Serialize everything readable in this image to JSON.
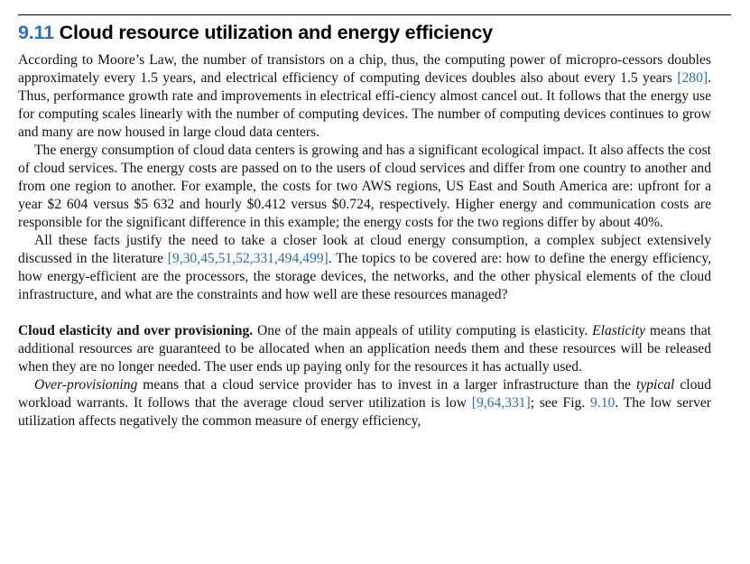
{
  "section": {
    "number": "9.11",
    "title": "Cloud resource utilization and energy efficiency"
  },
  "para1": {
    "text1": "According to Moore’s Law, the number of transistors on a chip, thus, the computing power of micropro-cessors doubles approximately every 1.5 years, and electrical efficiency of computing devices doubles also about every 1.5 years ",
    "cite1": "[280]",
    "text2": ". Thus, performance growth rate and improvements in electrical effi-ciency almost cancel out. It follows that the energy use for computing scales linearly with the number of computing devices. The number of computing devices continues to grow and many are now housed in large cloud data centers."
  },
  "para2": {
    "text": "The energy consumption of cloud data centers is growing and has a significant ecological impact. It also affects the cost of cloud services. The energy costs are passed on to the users of cloud services and differ from one country to another and from one region to another. For example, the costs for two AWS regions, US East and South America are: upfront for a year $2 604 versus $5 632 and hourly $0.412 versus $0.724, respectively. Higher energy and communication costs are responsible for the significant difference in this example; the energy costs for the two regions differ by about 40%."
  },
  "para3": {
    "text1": "All these facts justify the need to take a closer look at cloud energy consumption, a complex subject extensively discussed in the literature ",
    "cite1": "[9,30,45,51,52,331,494,499]",
    "text2": ". The topics to be covered are: how to define the energy efficiency, how energy-efficient are the processors, the storage devices, the networks, and the other physical elements of the cloud infrastructure, and what are the constraints and how well are these resources managed?"
  },
  "para4": {
    "runin": "Cloud elasticity and over provisioning.",
    "text1": " One of the main appeals of utility computing is elasticity. ",
    "em1": "Elasticity",
    "text2": " means that additional resources are guaranteed to be allocated when an application needs them and these resources will be released when they are no longer needed. The user ends up paying only for the resources it has actually used."
  },
  "para5": {
    "em1": "Over-provisioning",
    "text1": " means that a cloud service provider has to invest in a larger infrastructure than the ",
    "em2": "typical",
    "text2": " cloud workload warrants. It follows that the average cloud server utilization is low ",
    "cite1": "[9,64,331]",
    "text3": "; see Fig. ",
    "cite2": "9.10",
    "text4": ". The low server utilization affects negatively the common measure of energy efficiency,"
  }
}
